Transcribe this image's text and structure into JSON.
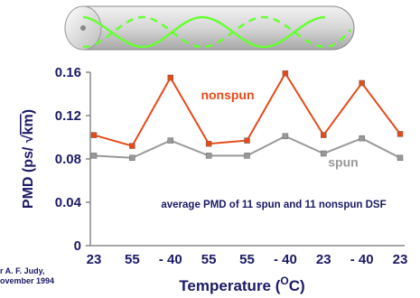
{
  "chart_data": {
    "type": "line",
    "categories": [
      "23",
      "55",
      "- 40",
      "55",
      "55",
      "- 40",
      "23",
      "- 40",
      "23"
    ],
    "series": [
      {
        "name": "nonspun",
        "values": [
          0.102,
          0.092,
          0.155,
          0.094,
          0.097,
          0.159,
          0.102,
          0.15,
          0.103
        ]
      },
      {
        "name": "spun",
        "values": [
          0.083,
          0.081,
          0.097,
          0.083,
          0.083,
          0.101,
          0.085,
          0.099,
          0.081
        ]
      }
    ],
    "ylabel_prefix": "PMD (ps/ ",
    "ylabel_unit": "km",
    "ylabel_suffix": ")",
    "xlabel_prefix": "Temperature (",
    "xlabel_super": "O",
    "xlabel_suffix": "C)",
    "annotation": "average PMD of 11 spun and 11 nonspun DSF",
    "yticks": [
      "0",
      "0.04",
      "0.08",
      "0.12",
      "0.16"
    ],
    "ylim": [
      0,
      0.16
    ],
    "grid": false,
    "credit_lines": [
      "r A. F. Judy,",
      "ovember 1994"
    ],
    "colors": {
      "nonspun": "#e64a19",
      "spun": "#999999",
      "text": "#1a1a66",
      "fiber_wave": "#66ff33"
    }
  }
}
